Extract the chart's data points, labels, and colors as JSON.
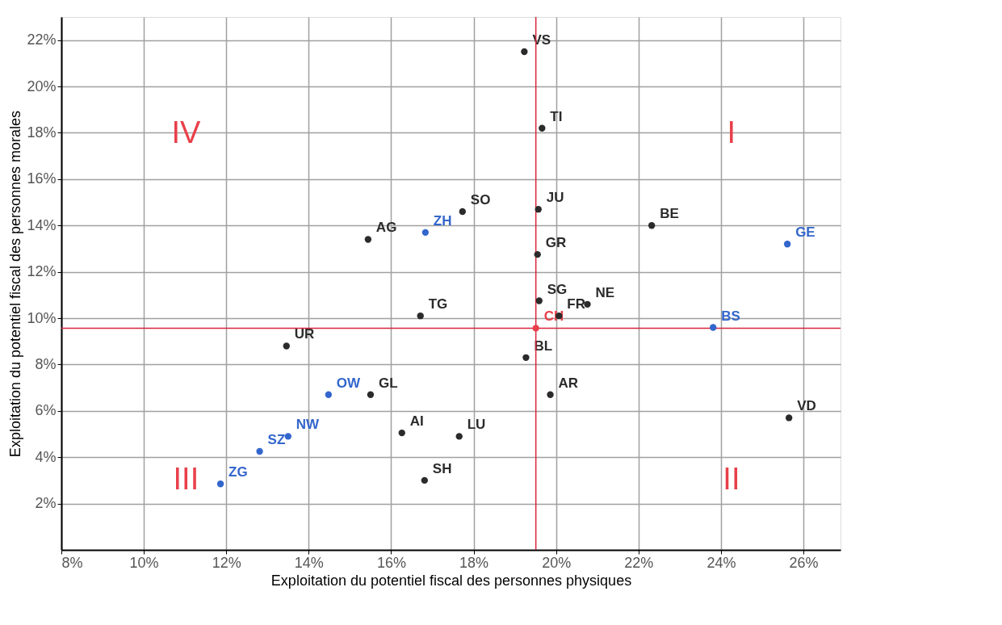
{
  "chart_data": {
    "type": "scatter",
    "xlabel": "Exploitation du potentiel fiscal des personnes physiques",
    "ylabel": "Exploitation du potentiel fiscal des personnes morales",
    "xlim": [
      8,
      26.9
    ],
    "ylim": [
      0,
      23
    ],
    "xticks": [
      {
        "value": 8,
        "label": "8%"
      },
      {
        "value": 10,
        "label": "10%"
      },
      {
        "value": 12,
        "label": "12%"
      },
      {
        "value": 14,
        "label": "14%"
      },
      {
        "value": 16,
        "label": "16%"
      },
      {
        "value": 18,
        "label": "18%"
      },
      {
        "value": 20,
        "label": "20%"
      },
      {
        "value": 22,
        "label": "22%"
      },
      {
        "value": 24,
        "label": "24%"
      },
      {
        "value": 26,
        "label": "26%"
      }
    ],
    "yticks": [
      {
        "value": 2,
        "label": "2%"
      },
      {
        "value": 4,
        "label": "4%"
      },
      {
        "value": 6,
        "label": "6%"
      },
      {
        "value": 8,
        "label": "8%"
      },
      {
        "value": 10,
        "label": "10%"
      },
      {
        "value": 12,
        "label": "12%"
      },
      {
        "value": 14,
        "label": "14%"
      },
      {
        "value": 16,
        "label": "16%"
      },
      {
        "value": 18,
        "label": "18%"
      },
      {
        "value": 20,
        "label": "20%"
      },
      {
        "value": 22,
        "label": "22%"
      }
    ],
    "grid": true,
    "marker": "circle",
    "ref_lines": [
      {
        "axis": "x",
        "value": 19.51,
        "color": "#d7263d"
      },
      {
        "axis": "y",
        "value": 9.57,
        "color": "#d7263d"
      }
    ],
    "annotations": [
      "IV",
      "I",
      "III",
      "II"
    ],
    "series": [
      {
        "name": "VS",
        "color": "#2b2b2b",
        "x": [
          19.23
        ],
        "values": [
          21.5
        ]
      },
      {
        "name": "TI",
        "color": "#2b2b2b",
        "x": [
          19.66
        ],
        "values": [
          18.2
        ]
      },
      {
        "name": "JU",
        "color": "#2b2b2b",
        "x": [
          19.57
        ],
        "values": [
          14.7
        ]
      },
      {
        "name": "SO",
        "color": "#2b2b2b",
        "x": [
          17.73
        ],
        "values": [
          14.6
        ]
      },
      {
        "name": "BE",
        "color": "#2b2b2b",
        "x": [
          22.32
        ],
        "values": [
          14.0
        ]
      },
      {
        "name": "AG",
        "color": "#2b2b2b",
        "x": [
          15.44
        ],
        "values": [
          13.4
        ]
      },
      {
        "name": "ZH",
        "color": "#3366cc",
        "x": [
          16.83
        ],
        "values": [
          13.7
        ]
      },
      {
        "name": "GR",
        "color": "#2b2b2b",
        "x": [
          19.55
        ],
        "values": [
          12.75
        ]
      },
      {
        "name": "GE",
        "color": "#3366cc",
        "x": [
          25.61
        ],
        "values": [
          13.2
        ]
      },
      {
        "name": "SG",
        "color": "#2b2b2b",
        "x": [
          19.59
        ],
        "values": [
          10.75
        ]
      },
      {
        "name": "NE",
        "color": "#2b2b2b",
        "x": [
          20.76
        ],
        "values": [
          10.6
        ]
      },
      {
        "name": "TG",
        "color": "#2b2b2b",
        "x": [
          16.71
        ],
        "values": [
          10.1
        ]
      },
      {
        "name": "FR",
        "color": "#2b2b2b",
        "x": [
          20.07
        ],
        "values": [
          10.1
        ]
      },
      {
        "name": "CH",
        "color": "#e8404a",
        "x": [
          19.51
        ],
        "values": [
          9.57
        ]
      },
      {
        "name": "BS",
        "color": "#3366cc",
        "x": [
          23.81
        ],
        "values": [
          9.6
        ]
      },
      {
        "name": "UR",
        "color": "#2b2b2b",
        "x": [
          13.46
        ],
        "values": [
          8.8
        ]
      },
      {
        "name": "BL",
        "color": "#2b2b2b",
        "x": [
          19.27
        ],
        "values": [
          8.3
        ]
      },
      {
        "name": "OW",
        "color": "#3366cc",
        "x": [
          14.48
        ],
        "values": [
          6.7
        ]
      },
      {
        "name": "GL",
        "color": "#2b2b2b",
        "x": [
          15.5
        ],
        "values": [
          6.7
        ]
      },
      {
        "name": "AR",
        "color": "#2b2b2b",
        "x": [
          19.86
        ],
        "values": [
          6.7
        ]
      },
      {
        "name": "VD",
        "color": "#2b2b2b",
        "x": [
          25.65
        ],
        "values": [
          5.7
        ]
      },
      {
        "name": "AI",
        "color": "#2b2b2b",
        "x": [
          16.26
        ],
        "values": [
          5.05
        ]
      },
      {
        "name": "LU",
        "color": "#2b2b2b",
        "x": [
          17.65
        ],
        "values": [
          4.9
        ]
      },
      {
        "name": "NW",
        "color": "#3366cc",
        "x": [
          13.5
        ],
        "values": [
          4.9
        ]
      },
      {
        "name": "SZ",
        "color": "#3366cc",
        "x": [
          12.81
        ],
        "values": [
          4.25
        ]
      },
      {
        "name": "ZG",
        "color": "#3366cc",
        "x": [
          11.86
        ],
        "values": [
          2.85
        ]
      },
      {
        "name": "SH",
        "color": "#2b2b2b",
        "x": [
          16.81
        ],
        "values": [
          3.0
        ]
      }
    ]
  }
}
